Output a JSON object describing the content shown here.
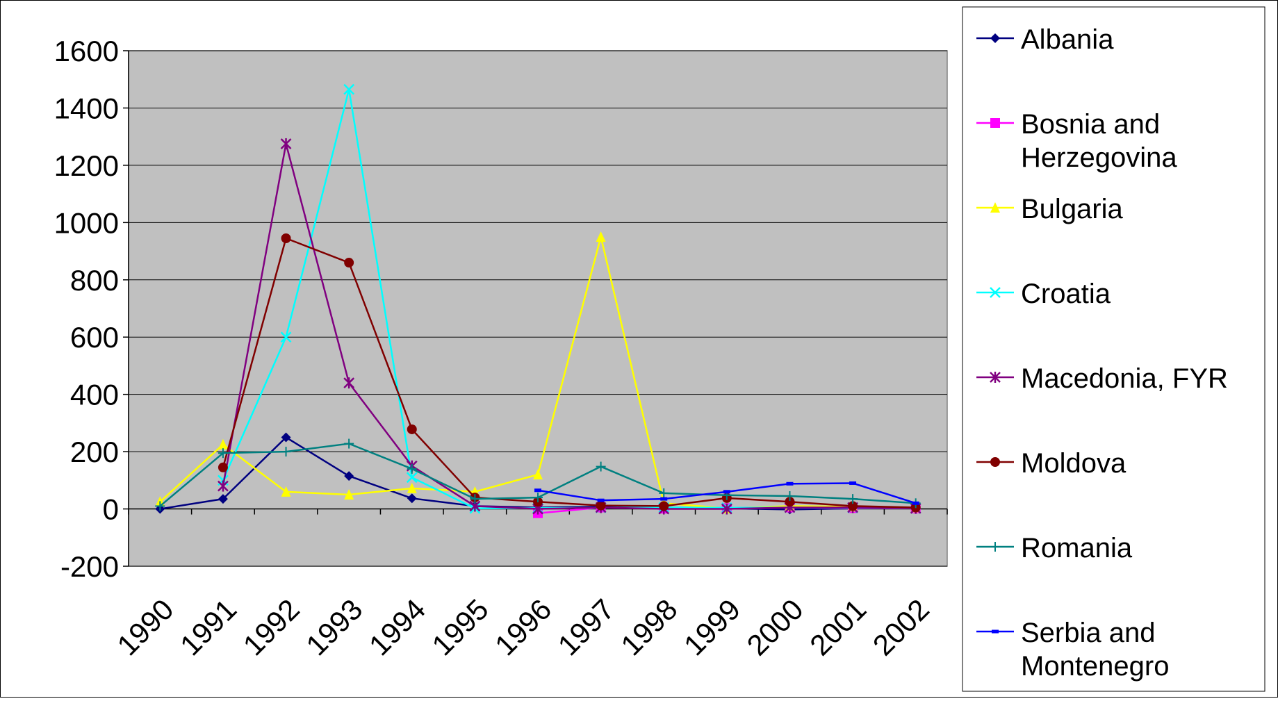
{
  "chart_data": {
    "type": "line",
    "title": "",
    "xlabel": "",
    "ylabel": "",
    "categories": [
      "1990",
      "1991",
      "1992",
      "1993",
      "1994",
      "1995",
      "1996",
      "1997",
      "1998",
      "1999",
      "2000",
      "2001",
      "2002"
    ],
    "ylim": [
      -200,
      1600
    ],
    "yticks": [
      -200,
      0,
      200,
      400,
      600,
      800,
      1000,
      1200,
      1400,
      1600
    ],
    "grid": true,
    "plot_background": "#C0C0C0",
    "legend_position": "right",
    "series": [
      {
        "name": "Albania",
        "color": "#000080",
        "marker": "diamond",
        "values": [
          0,
          35,
          250,
          115,
          37,
          10,
          5,
          8,
          5,
          2,
          -2,
          2,
          3
        ]
      },
      {
        "name": "Bosnia and Herzegovina",
        "color": "#FF00FF",
        "marker": "square",
        "values": [
          null,
          null,
          null,
          null,
          null,
          null,
          -15,
          5,
          1,
          3,
          5,
          3,
          2
        ]
      },
      {
        "name": "Bulgaria",
        "color": "#FFFF00",
        "marker": "triangle",
        "values": [
          25,
          225,
          60,
          50,
          72,
          60,
          120,
          950,
          20,
          2,
          10,
          8,
          5
        ]
      },
      {
        "name": "Croatia",
        "color": "#00FFFF",
        "marker": "x",
        "values": [
          null,
          100,
          600,
          1465,
          110,
          2,
          3,
          4,
          5,
          4,
          5,
          4,
          2
        ]
      },
      {
        "name": "Macedonia, FYR",
        "color": "#800080",
        "marker": "star",
        "values": [
          null,
          80,
          1275,
          440,
          150,
          10,
          0,
          5,
          0,
          0,
          5,
          5,
          2
        ]
      },
      {
        "name": "Moldova",
        "color": "#800000",
        "marker": "circle",
        "values": [
          null,
          145,
          945,
          860,
          278,
          40,
          25,
          12,
          10,
          38,
          25,
          10,
          5
        ]
      },
      {
        "name": "Romania",
        "color": "#008080",
        "marker": "plus",
        "values": [
          10,
          195,
          200,
          228,
          140,
          35,
          40,
          148,
          55,
          48,
          45,
          35,
          20
        ]
      },
      {
        "name": "Serbia and Montenegro",
        "color": "#0000FF",
        "marker": "dash",
        "values": [
          null,
          null,
          null,
          null,
          null,
          null,
          65,
          30,
          35,
          60,
          88,
          90,
          20
        ]
      }
    ]
  }
}
